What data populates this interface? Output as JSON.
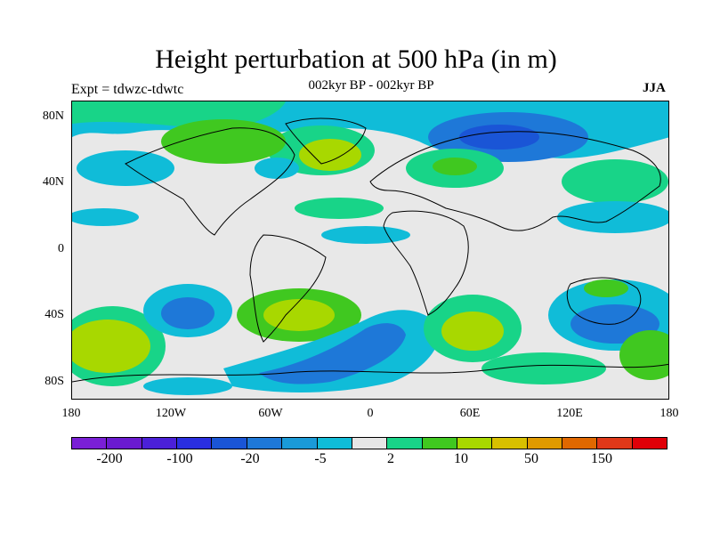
{
  "title": "Height perturbation at 500 hPa (in m)",
  "subtitle": "002kyr BP - 002kyr BP",
  "left_label": "Expt = tdwzc-tdwtc",
  "right_label": "JJA",
  "map": {
    "projection": "cylindrical-equidistant",
    "land_color": "#e5e5e5",
    "coastline_color": "#000000",
    "lat_labels": [
      "80N",
      "40N",
      "0",
      "40S",
      "80S"
    ],
    "lon_labels": [
      "180",
      "120W",
      "60W",
      "0",
      "60E",
      "120E",
      "180"
    ]
  },
  "colorbar": {
    "colors": [
      "#7a1fd6",
      "#6a1ad0",
      "#4b20d8",
      "#2a2ee0",
      "#1a55d6",
      "#1e78d8",
      "#1a9ad8",
      "#10bcd8",
      "#e6e6e6",
      "#18d488",
      "#40c820",
      "#a8d800",
      "#d8c000",
      "#e09a00",
      "#e06800",
      "#e03818",
      "#e00008"
    ],
    "labels": [
      "-200",
      "-100",
      "-20",
      "-5",
      "2",
      "10",
      "50",
      "150"
    ]
  },
  "chart_data": {
    "type": "heatmap",
    "title": "Height perturbation at 500 hPa (in m)",
    "subtitle": "002kyr BP - 002kyr BP",
    "season": "JJA",
    "experiment": "Expt = tdwzc-tdwtc",
    "x": {
      "label": "",
      "range": [
        -180,
        180
      ],
      "ticks": [
        "180",
        "120W",
        "60W",
        "0",
        "60E",
        "120E",
        "180"
      ]
    },
    "y": {
      "label": "",
      "range": [
        -90,
        90
      ],
      "ticks": [
        "80N",
        "40N",
        "0",
        "40S",
        "80S"
      ]
    },
    "levels": [
      -200,
      -100,
      -20,
      -5,
      2,
      10,
      50,
      150
    ],
    "regions": [
      {
        "lon": -110,
        "lat": -45,
        "value": -50,
        "band": "negative"
      },
      {
        "lon": -160,
        "lat": -50,
        "value": 30,
        "band": "positive"
      },
      {
        "lon": -40,
        "lat": -42,
        "value": 30,
        "band": "positive"
      },
      {
        "lon": -40,
        "lat": -65,
        "value": -40,
        "band": "negative"
      },
      {
        "lon": 55,
        "lat": -50,
        "value": 30,
        "band": "positive"
      },
      {
        "lon": 130,
        "lat": -45,
        "value": -30,
        "band": "negative"
      },
      {
        "lon": 90,
        "lat": 70,
        "value": -40,
        "band": "negative"
      },
      {
        "lon": -45,
        "lat": 65,
        "value": 20,
        "band": "positive"
      },
      {
        "lon": -90,
        "lat": 75,
        "value": 15,
        "band": "positive"
      },
      {
        "lon": 40,
        "lat": 50,
        "value": 10,
        "band": "positive"
      },
      {
        "lon": 160,
        "lat": 55,
        "value": 10,
        "band": "positive"
      }
    ]
  }
}
